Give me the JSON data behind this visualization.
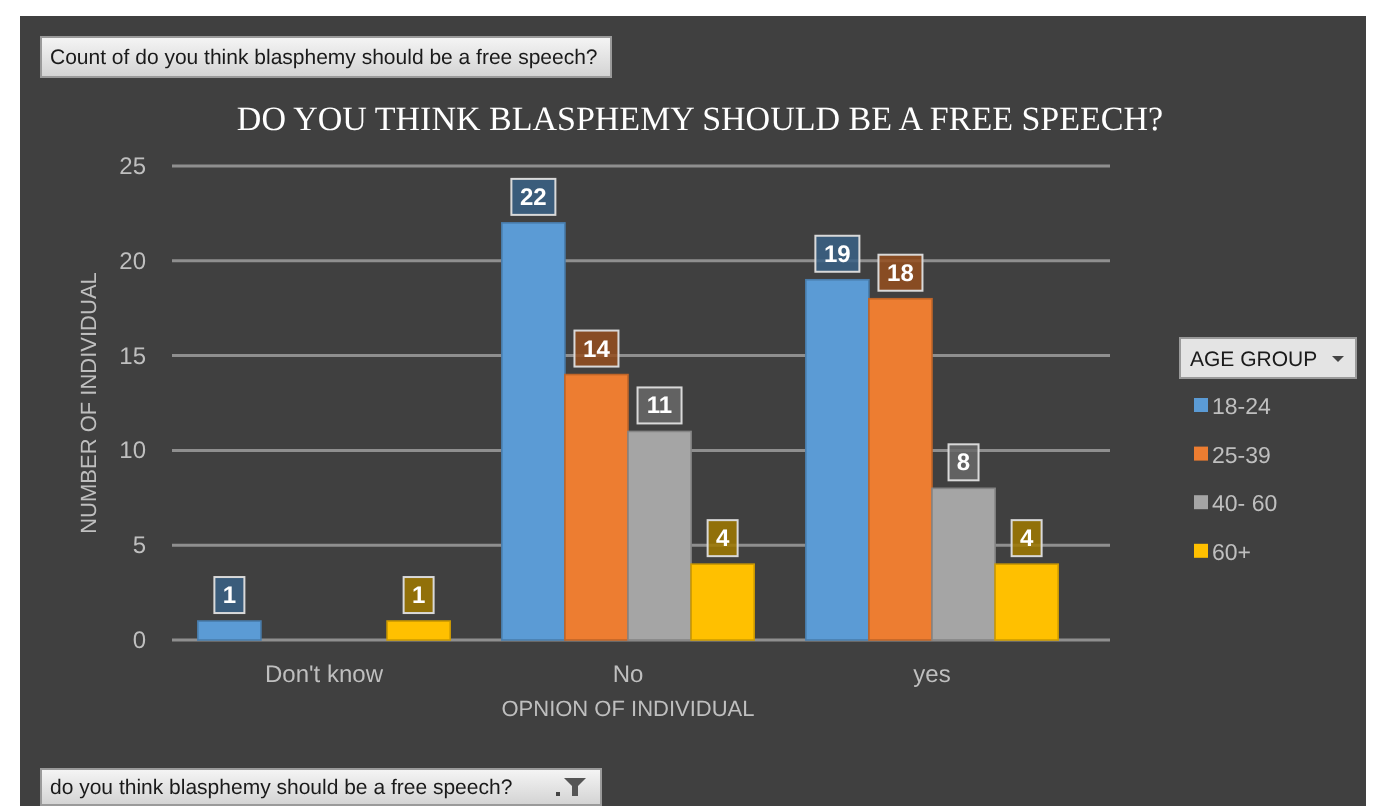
{
  "chart_data": {
    "type": "bar",
    "title": "DO YOU THINK BLASPHEMY SHOULD BE A FREE SPEECH?",
    "xlabel": "OPNION OF INDIVIDUAL",
    "ylabel": "NUMBER OF INDIVIDUAL",
    "legend_title": "AGE GROUP",
    "annotations": [
      "Count of do you think blasphemy should be a free speech?",
      "do you think blasphemy should be a free speech?"
    ],
    "categories": [
      "Don't know",
      "No",
      "yes"
    ],
    "series": [
      {
        "name": "18-24",
        "color": "#5b9bd5",
        "values": [
          1,
          22,
          19
        ]
      },
      {
        "name": "25-39",
        "color": "#ed7d31",
        "values": [
          null,
          14,
          18
        ]
      },
      {
        "name": "40- 60",
        "color": "#a5a5a5",
        "values": [
          null,
          11,
          8
        ]
      },
      {
        "name": "60+",
        "color": "#ffc000",
        "values": [
          1,
          4,
          4
        ]
      }
    ],
    "ylim": [
      0,
      25
    ],
    "yticks": [
      0,
      5,
      10,
      15,
      20,
      25
    ],
    "grid": "y",
    "legend": "right",
    "data_labels": true
  }
}
